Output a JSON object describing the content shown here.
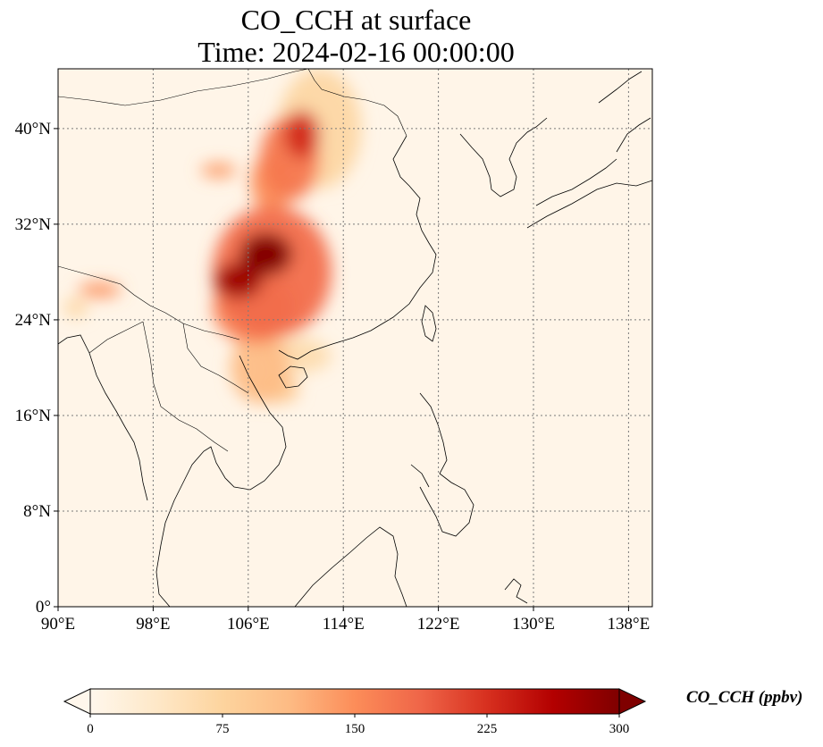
{
  "title": {
    "line1": "CO_CCH at surface",
    "line2": "Time: 2024-02-16 00:00:00"
  },
  "map": {
    "projection": "PlateCarree",
    "lon_range": [
      90,
      140
    ],
    "lat_range": [
      0,
      45
    ],
    "lon_ticks": [
      {
        "value": 90,
        "label": "90°E"
      },
      {
        "value": 98,
        "label": "98°E"
      },
      {
        "value": 106,
        "label": "106°E"
      },
      {
        "value": 114,
        "label": "114°E"
      },
      {
        "value": 122,
        "label": "122°E"
      },
      {
        "value": 130,
        "label": "130°E"
      },
      {
        "value": 138,
        "label": "138°E"
      }
    ],
    "lat_ticks": [
      {
        "value": 0,
        "label": "0°"
      },
      {
        "value": 8,
        "label": "8°N"
      },
      {
        "value": 16,
        "label": "16°N"
      },
      {
        "value": 24,
        "label": "24°N"
      },
      {
        "value": 32,
        "label": "32°N"
      },
      {
        "value": 40,
        "label": "40°N"
      }
    ],
    "gridlines": true,
    "field": {
      "variable": "CO_CCH",
      "background_value": 5,
      "plumes": [
        {
          "lon": 107.5,
          "lat": 29.5,
          "rx": 2.2,
          "ry": 1.8,
          "value": 300
        },
        {
          "lon": 105.2,
          "lat": 27.3,
          "rx": 2.0,
          "ry": 1.5,
          "value": 280
        },
        {
          "lon": 108.0,
          "lat": 28.0,
          "rx": 5.0,
          "ry": 5.5,
          "value": 180
        },
        {
          "lon": 106.5,
          "lat": 25.0,
          "rx": 3.5,
          "ry": 3.0,
          "value": 160
        },
        {
          "lon": 109.5,
          "lat": 37.5,
          "rx": 2.5,
          "ry": 3.5,
          "value": 170
        },
        {
          "lon": 110.5,
          "lat": 39.5,
          "rx": 1.5,
          "ry": 2.0,
          "value": 230
        },
        {
          "lon": 108.0,
          "lat": 35.5,
          "rx": 1.8,
          "ry": 2.5,
          "value": 150
        },
        {
          "lon": 103.5,
          "lat": 36.5,
          "rx": 1.5,
          "ry": 0.6,
          "value": 140
        },
        {
          "lon": 107.0,
          "lat": 20.0,
          "rx": 2.5,
          "ry": 3.0,
          "value": 110
        },
        {
          "lon": 108.5,
          "lat": 18.2,
          "rx": 1.8,
          "ry": 1.2,
          "value": 90
        },
        {
          "lon": 110.0,
          "lat": 21.0,
          "rx": 3.0,
          "ry": 1.5,
          "value": 60
        },
        {
          "lon": 93.5,
          "lat": 26.5,
          "rx": 1.8,
          "ry": 0.6,
          "value": 150
        },
        {
          "lon": 91.5,
          "lat": 25.0,
          "rx": 1.0,
          "ry": 0.8,
          "value": 70
        },
        {
          "lon": 112.0,
          "lat": 40.0,
          "rx": 3.5,
          "ry": 5.0,
          "value": 70
        }
      ]
    }
  },
  "colorbar": {
    "label": "CO_CCH (ppbv)",
    "min": 0,
    "max": 300,
    "extend": "both",
    "ticks": [
      {
        "value": 0,
        "label": "0"
      },
      {
        "value": 75,
        "label": "75"
      },
      {
        "value": 150,
        "label": "150"
      },
      {
        "value": 225,
        "label": "225"
      },
      {
        "value": 300,
        "label": "300"
      }
    ],
    "colormap": "OrRd",
    "stops": [
      "#fff7ec",
      "#fee8c8",
      "#fdd49e",
      "#fdbb84",
      "#fc8d59",
      "#ef6548",
      "#d7301f",
      "#b30000",
      "#7f0000"
    ]
  }
}
